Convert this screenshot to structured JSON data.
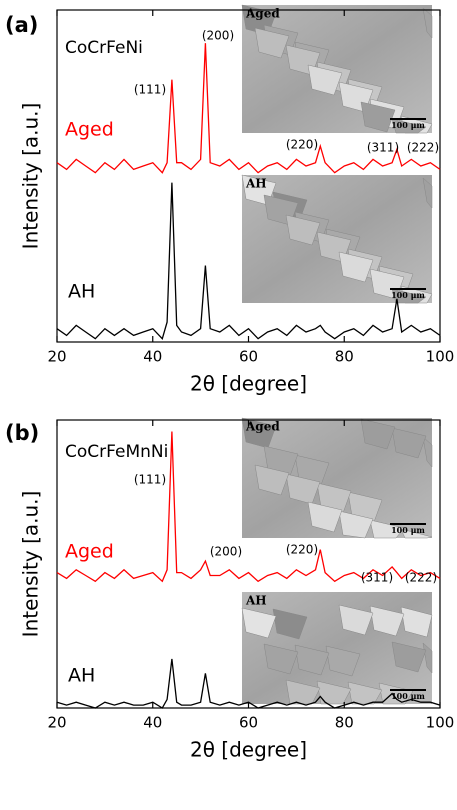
{
  "chart_data": [
    {
      "type": "line",
      "panel_label": "(a)",
      "title": "CoCrFeNi",
      "x_label": "2θ [degree]",
      "y_label": "Intensity [a.u.]",
      "xlim": [
        20,
        100
      ],
      "xticks": [
        20,
        40,
        60,
        80,
        100
      ],
      "ylim": [
        0,
        100
      ],
      "x": [
        20,
        22,
        24,
        26,
        28,
        30,
        32,
        34,
        36,
        38,
        40,
        42,
        43,
        44,
        45,
        46,
        48,
        50,
        51,
        52,
        54,
        56,
        58,
        60,
        62,
        64,
        66,
        68,
        70,
        72,
        74,
        75,
        76,
        78,
        80,
        82,
        84,
        86,
        88,
        90,
        91,
        92,
        94,
        96,
        98,
        100
      ],
      "series": [
        {
          "name": "Aged",
          "color": "#ff0000",
          "values": [
            54,
            52,
            55,
            53,
            51,
            54,
            52,
            55,
            52,
            53,
            54,
            51,
            54,
            79,
            54,
            54,
            52,
            55,
            90,
            54,
            53,
            55,
            52,
            54,
            51,
            53,
            54,
            52,
            55,
            53,
            54,
            59,
            54,
            51,
            53,
            54,
            52,
            55,
            53,
            54,
            58,
            53,
            55,
            53,
            54,
            52
          ]
        },
        {
          "name": "AH",
          "color": "#000000",
          "values": [
            4,
            2,
            5,
            3,
            1,
            4,
            2,
            4,
            2,
            3,
            4,
            1,
            6,
            48,
            5,
            3,
            2,
            4,
            23,
            4,
            3,
            5,
            2,
            4,
            1,
            3,
            4,
            2,
            5,
            3,
            4,
            5,
            3,
            1,
            3,
            4,
            2,
            5,
            3,
            4,
            13,
            3,
            5,
            3,
            4,
            2
          ]
        }
      ],
      "annotations": [
        "(111)",
        "(200)",
        "(220)",
        "(311)",
        "(222)"
      ],
      "insets": [
        {
          "label": "Aged",
          "scale_bar": "100 μm"
        },
        {
          "label": "AH",
          "scale_bar": "100 μm"
        }
      ]
    },
    {
      "type": "line",
      "panel_label": "(b)",
      "title": "CoCrFeMnNi",
      "x_label": "2θ [degree]",
      "y_label": "Intensity [a.u.]",
      "xlim": [
        20,
        100
      ],
      "xticks": [
        20,
        40,
        60,
        80,
        100
      ],
      "ylim": [
        0,
        100
      ],
      "x": [
        20,
        22,
        24,
        26,
        28,
        30,
        32,
        34,
        36,
        38,
        40,
        42,
        43,
        44,
        45,
        46,
        48,
        50,
        51,
        52,
        54,
        56,
        58,
        60,
        62,
        64,
        66,
        68,
        70,
        72,
        74,
        75,
        76,
        78,
        80,
        82,
        84,
        86,
        88,
        90,
        91,
        92,
        94,
        96,
        98,
        100
      ],
      "series": [
        {
          "name": "Aged",
          "color": "#ff0000",
          "values": [
            47,
            45,
            48,
            46,
            44,
            47,
            45,
            48,
            45,
            46,
            47,
            44,
            48,
            96,
            47,
            47,
            45,
            48,
            51,
            46,
            46,
            48,
            45,
            47,
            44,
            46,
            47,
            45,
            48,
            46,
            48,
            55,
            47,
            44,
            46,
            47,
            45,
            48,
            46,
            49,
            47,
            45,
            48,
            46,
            47,
            45
          ]
        },
        {
          "name": "AH",
          "color": "#000000",
          "values": [
            2,
            1,
            2,
            1,
            0,
            2,
            1,
            2,
            1,
            1,
            2,
            0,
            3,
            17,
            2,
            1,
            1,
            2,
            12,
            2,
            1,
            2,
            1,
            2,
            0,
            1,
            2,
            1,
            2,
            1,
            2,
            4,
            2,
            0,
            1,
            2,
            1,
            2,
            2,
            5,
            3,
            2,
            3,
            2,
            2,
            1
          ]
        }
      ],
      "annotations": [
        "(111)",
        "(200)",
        "(220)",
        "(311)",
        "(222)"
      ],
      "insets": [
        {
          "label": "Aged",
          "scale_bar": "100 μm"
        },
        {
          "label": "AH",
          "scale_bar": "100 μm"
        }
      ]
    }
  ]
}
